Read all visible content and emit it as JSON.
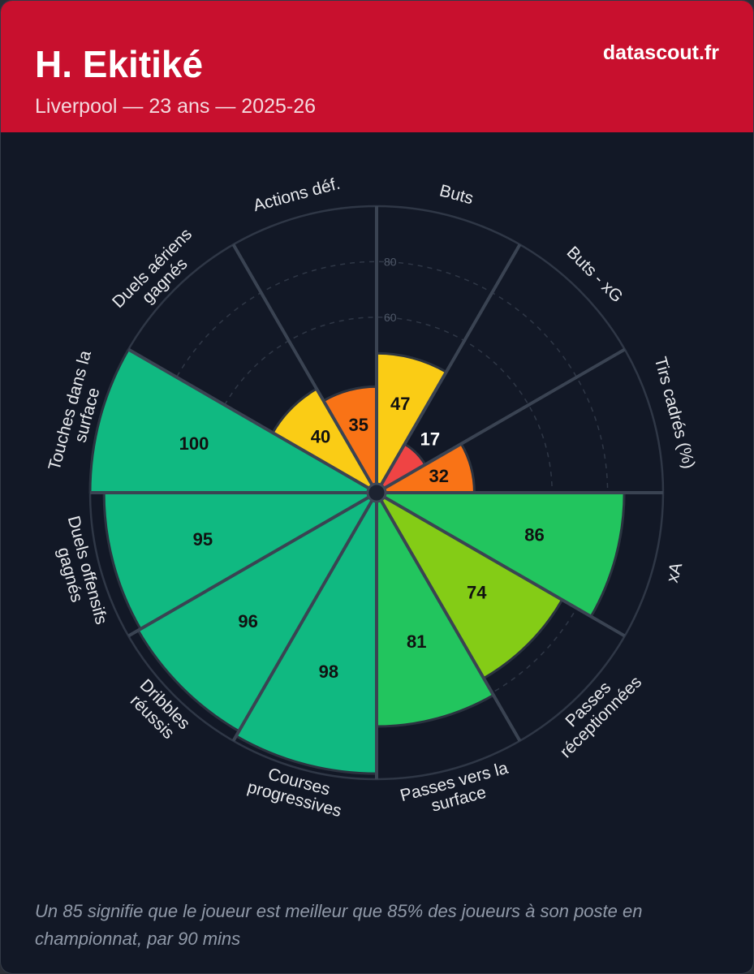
{
  "header": {
    "player_name": "H. Ekitiké",
    "subtitle": "Liverpool — 23 ans — 2025-26",
    "brand": "datascout.fr"
  },
  "footnote": "Un 85 signifie que le joueur est meilleur que 85% des joueurs à son poste en championnat, par 90 mins",
  "colors": {
    "header_bg": "#c8102e",
    "card_bg": "#121826",
    "elite": "#10b981",
    "very_good": "#22c55e",
    "good": "#84cc16",
    "average": "#facc15",
    "below_average": "#f97316",
    "poor": "#ef4444",
    "grid": "#2f3746",
    "spoke": "#3a4352"
  },
  "chart_data": {
    "type": "pizza",
    "rlim": [
      0,
      100
    ],
    "rticks": [
      60,
      80
    ],
    "categories": [
      {
        "label": "Buts",
        "lines": [
          "Buts"
        ],
        "value": 47,
        "color": "#facc15"
      },
      {
        "label": "Buts - xG",
        "lines": [
          "Buts - xG"
        ],
        "value": 17,
        "color": "#ef4444"
      },
      {
        "label": "Tirs cadrés (%)",
        "lines": [
          "Tirs cadrés (%)"
        ],
        "value": 32,
        "color": "#f97316"
      },
      {
        "label": "xA",
        "lines": [
          "xA"
        ],
        "value": 86,
        "color": "#22c55e"
      },
      {
        "label": "Passes réceptionnées",
        "lines": [
          "Passes",
          "réceptionnées"
        ],
        "value": 74,
        "color": "#84cc16"
      },
      {
        "label": "Passes vers la surface",
        "lines": [
          "Passes vers la",
          "surface"
        ],
        "value": 81,
        "color": "#22c55e"
      },
      {
        "label": "Courses progressives",
        "lines": [
          "Courses",
          "progressives"
        ],
        "value": 98,
        "color": "#10b981"
      },
      {
        "label": "Dribbles réussis",
        "lines": [
          "Dribbles",
          "réussis"
        ],
        "value": 96,
        "color": "#10b981"
      },
      {
        "label": "Duels offensifs gagnés",
        "lines": [
          "Duels offensifs",
          "gagnés"
        ],
        "value": 95,
        "color": "#10b981"
      },
      {
        "label": "Touches dans la surface",
        "lines": [
          "Touches dans la",
          "surface"
        ],
        "value": 100,
        "color": "#10b981"
      },
      {
        "label": "Duels aériens gagnés",
        "lines": [
          "Duels aériens",
          "gagnés"
        ],
        "value": 40,
        "color": "#facc15"
      },
      {
        "label": "Actions déf.",
        "lines": [
          "Actions déf."
        ],
        "value": 35,
        "color": "#f97316"
      }
    ]
  }
}
